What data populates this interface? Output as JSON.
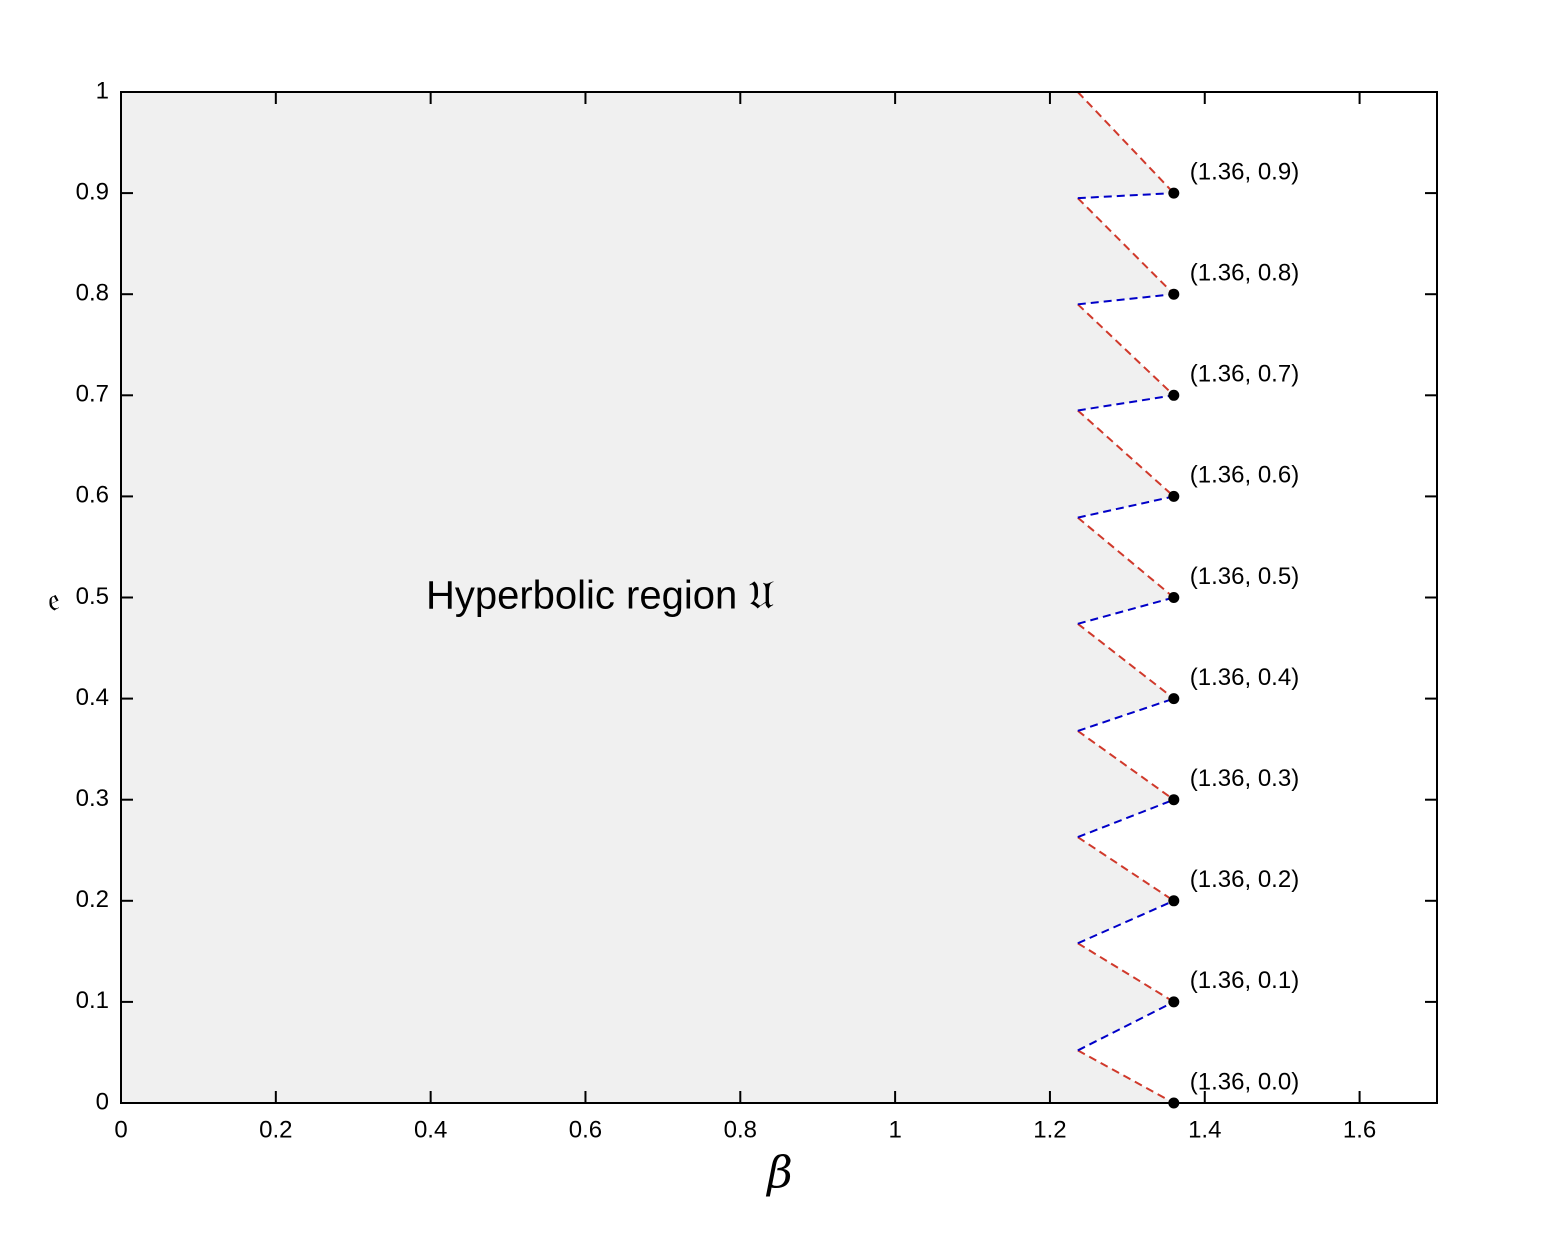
{
  "chart_data": {
    "type": "line",
    "xlabel": "β",
    "ylabel": "𝔢",
    "region": {
      "label": "Hyperbolic region 𝔘",
      "color": "#f0f0f0",
      "label_color": "#0a0a6e"
    },
    "xlim": [
      0,
      1.7
    ],
    "ylim": [
      0,
      1
    ],
    "xticks": [
      0,
      0.2,
      0.4,
      0.6,
      0.8,
      1,
      1.2,
      1.4,
      1.6
    ],
    "yticks": [
      0,
      0.1,
      0.2,
      0.3,
      0.4,
      0.5,
      0.6,
      0.7,
      0.8,
      0.9,
      1
    ],
    "series": [
      {
        "color": "#d0392b",
        "dashed": true,
        "x": [
          1.236,
          1.36,
          null,
          1.236,
          1.36,
          null,
          1.236,
          1.36,
          null,
          1.236,
          1.36,
          null,
          1.236,
          1.36,
          null,
          1.236,
          1.36,
          null,
          1.236,
          1.36,
          null,
          1.236,
          1.36,
          null,
          1.236,
          1.36,
          null,
          1.236,
          1.36
        ],
        "values": [
          1.0,
          0.9,
          null,
          0.895,
          0.8,
          null,
          0.79,
          0.7,
          null,
          0.685,
          0.6,
          null,
          0.579,
          0.5,
          null,
          0.474,
          0.4,
          null,
          0.368,
          0.3,
          null,
          0.263,
          0.2,
          null,
          0.158,
          0.1,
          null,
          0.052,
          0.0
        ]
      },
      {
        "color": "#0000c8",
        "dashed": true,
        "x": [
          1.236,
          1.36,
          null,
          1.236,
          1.36,
          null,
          1.236,
          1.36,
          null,
          1.236,
          1.36,
          null,
          1.236,
          1.36,
          null,
          1.236,
          1.36,
          null,
          1.236,
          1.36,
          null,
          1.236,
          1.36,
          null,
          1.236,
          1.36
        ],
        "values": [
          0.895,
          0.9,
          null,
          0.79,
          0.8,
          null,
          0.685,
          0.7,
          null,
          0.579,
          0.6,
          null,
          0.474,
          0.5,
          null,
          0.368,
          0.4,
          null,
          0.263,
          0.3,
          null,
          0.158,
          0.2,
          null,
          0.052,
          0.1
        ]
      },
      {
        "color": "#000000",
        "marker": "dot",
        "x": [
          1.36,
          1.36,
          1.36,
          1.36,
          1.36,
          1.36,
          1.36,
          1.36,
          1.36,
          1.36
        ],
        "values": [
          0.9,
          0.8,
          0.7,
          0.6,
          0.5,
          0.4,
          0.3,
          0.2,
          0.1,
          0.0
        ],
        "value_labels": [
          "(1.36, 0.9)",
          "(1.36, 0.8)",
          "(1.36, 0.7)",
          "(1.36, 0.6)",
          "(1.36, 0.5)",
          "(1.36, 0.4)",
          "(1.36, 0.3)",
          "(1.36, 0.2)",
          "(1.36, 0.1)",
          "(1.36, 0.0)"
        ]
      }
    ]
  }
}
